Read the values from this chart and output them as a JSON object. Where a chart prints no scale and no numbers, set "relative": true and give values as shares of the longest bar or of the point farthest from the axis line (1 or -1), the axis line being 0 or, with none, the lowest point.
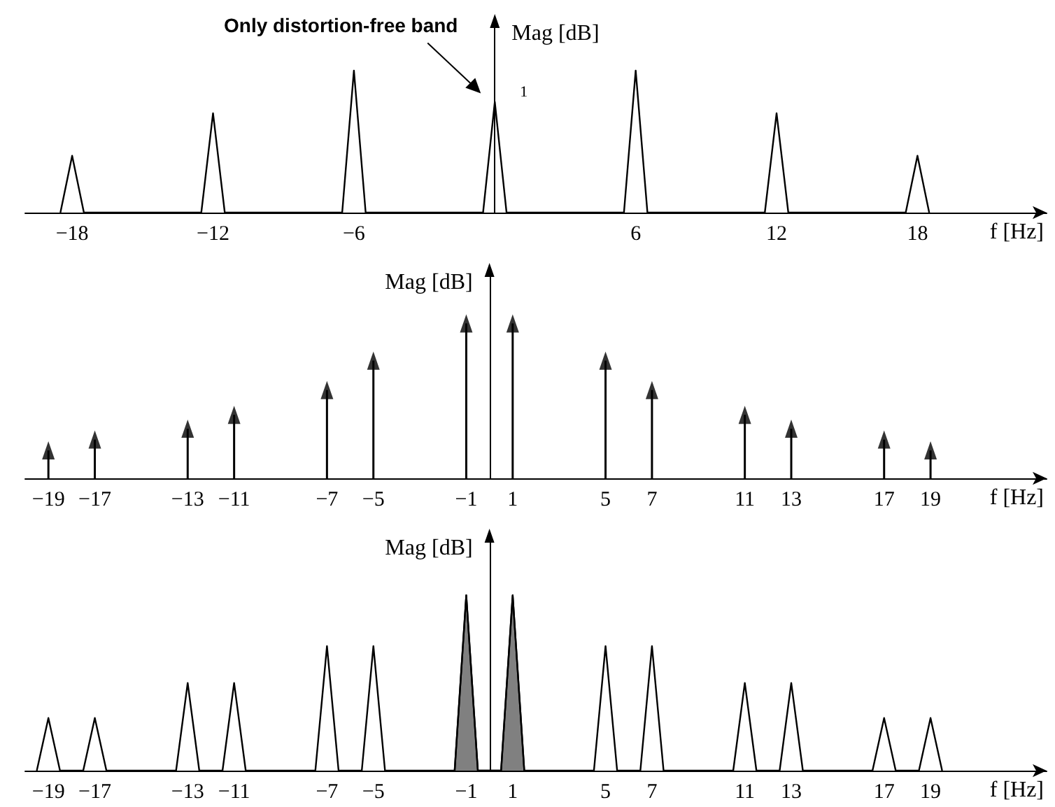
{
  "chart_data": [
    {
      "type": "line",
      "relative": true,
      "xlabel": "f [Hz]",
      "ylabel": "Mag [dB]",
      "xlim": [
        -20,
        23.5
      ],
      "xticks": [
        -18,
        -12,
        -6,
        6,
        12,
        18
      ],
      "x": [
        -18.5,
        -18,
        -17.5,
        -12.5,
        -12,
        -11.5,
        -6.5,
        -6,
        -5.5,
        -0.5,
        0,
        0.5,
        5.5,
        6,
        6.5,
        11.5,
        12,
        12.5,
        17.5,
        18,
        18.5
      ],
      "values": [
        0,
        0.4,
        0,
        0,
        0.7,
        0,
        0,
        1,
        0,
        0,
        0.78,
        0,
        0,
        1,
        0,
        0,
        0.7,
        0,
        0,
        0.4,
        0
      ],
      "color": "#000000",
      "annotations": [
        "Only distortion-free band",
        "1"
      ]
    },
    {
      "type": "lollipop",
      "relative": true,
      "xlabel": "f [Hz]",
      "ylabel": "Mag [dB]",
      "xlim": [
        -20,
        24
      ],
      "xticks": [
        -19,
        -17,
        -13,
        -11,
        -7,
        -5,
        -1,
        1,
        5,
        7,
        11,
        13,
        17,
        19
      ],
      "x": [
        -19,
        -17,
        -13,
        -11,
        -7,
        -5,
        -1,
        1,
        5,
        7,
        11,
        13,
        17,
        19
      ],
      "values": [
        0.18,
        0.25,
        0.32,
        0.41,
        0.57,
        0.76,
        1,
        1,
        0.76,
        0.57,
        0.41,
        0.32,
        0.25,
        0.18
      ],
      "color": "#000000",
      "marker": "triangle"
    },
    {
      "type": "line",
      "relative": true,
      "xlabel": "f [Hz]",
      "ylabel": "Mag [dB]",
      "xlim": [
        -20,
        24
      ],
      "xticks": [
        -19,
        -17,
        -13,
        -11,
        -7,
        -5,
        -1,
        1,
        5,
        7,
        11,
        13,
        17,
        19
      ],
      "series": [
        {
          "type": "line",
          "color": "#000000",
          "x": [
            -19.5,
            -19,
            -18.5,
            -17.5,
            -17,
            -16.5,
            -13.5,
            -13,
            -12.5,
            -11.5,
            -11,
            -10.5,
            -7.5,
            -7,
            -6.5,
            -5.5,
            -5,
            -4.5,
            -1.5,
            -1,
            -0.5,
            0.5,
            1,
            1.5,
            4.5,
            5,
            5.5,
            6.5,
            7,
            7.5,
            10.5,
            11,
            11.5,
            12.5,
            13,
            13.5,
            16.5,
            17,
            17.5,
            18.5,
            19,
            19.5
          ],
          "values": [
            0,
            0.3,
            0,
            0,
            0.3,
            0,
            0,
            0.5,
            0,
            0,
            0.5,
            0,
            0,
            0.71,
            0,
            0,
            0.71,
            0,
            0,
            1,
            0,
            0,
            1,
            0,
            0,
            0.71,
            0,
            0,
            0.71,
            0,
            0,
            0.5,
            0,
            0,
            0.5,
            0,
            0,
            0.3,
            0,
            0,
            0.3,
            0
          ]
        },
        {
          "type": "area",
          "color": "#808080",
          "x": [
            -1.5,
            -1,
            -0.5,
            0.5,
            1,
            1.5
          ],
          "values": [
            0,
            1,
            0,
            0,
            1,
            0
          ]
        }
      ]
    }
  ]
}
